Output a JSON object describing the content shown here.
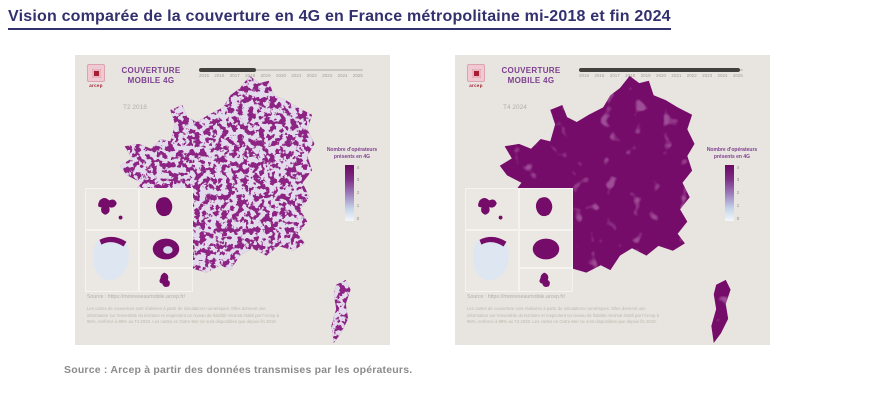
{
  "page": {
    "title": "Vision comparée de la couverture en 4G en France métropolitaine mi-2018 et fin 2024",
    "source_note": "Source : Arcep à partir des données transmises par les opérateurs."
  },
  "panels": [
    {
      "period": "mi-2018",
      "logo_text": "arcep",
      "app_title_line1": "COUVERTURE",
      "app_title_line2": "MOBILE 4G",
      "period_label": "T2 2018",
      "timeline": {
        "years": [
          "2015",
          "2016",
          "2017",
          "2018",
          "2019",
          "2020",
          "2021",
          "2022",
          "2023",
          "2024",
          "2025"
        ],
        "selected_year": "2018"
      },
      "legend": {
        "title_line1": "Nombre d'opérateurs",
        "title_line2": "présents en 4G",
        "ticks": [
          "4",
          "3",
          "2",
          "1",
          "0"
        ]
      },
      "source_url": "Source : https://monreseaumobile.arcep.fr/",
      "disclaimer": "Les cartes de couverture sont réalisées à partir de simulations numériques. Elles donnent une information sur l'ensemble du territoire et respectent un niveau de fiabilité minimal établi par l'Arcep à 95%, renforcé à 98% au T4 2020. Les cartes en Outre-Mer ne sont disponibles que depuis fin 2018."
    },
    {
      "period": "fin 2024",
      "logo_text": "arcep",
      "app_title_line1": "COUVERTURE",
      "app_title_line2": "MOBILE 4G",
      "period_label": "T4 2024",
      "timeline": {
        "years": [
          "2015",
          "2016",
          "2017",
          "2018",
          "2019",
          "2020",
          "2021",
          "2022",
          "2023",
          "2024",
          "2025"
        ],
        "selected_year": "2024"
      },
      "legend": {
        "title_line1": "Nombre d'opérateurs",
        "title_line2": "présents en 4G",
        "ticks": [
          "4",
          "3",
          "2",
          "1",
          "0"
        ]
      },
      "source_url": "Source : https://monreseaumobile.arcep.fr/",
      "disclaimer": "Les cartes de couverture sont réalisées à partir de simulations numériques. Elles donnent une information sur l'ensemble du territoire et respectent un niveau de fiabilité minimal établi par l'Arcep à 95%, renforcé à 98% au T4 2020. Les cartes en Outre-Mer ne sont disponibles que depuis fin 2018."
    }
  ],
  "colors": {
    "title-navy": "#32306d",
    "source-gray": "#8b8b8b",
    "panel-bg": "#e8e5e0",
    "map-purple": "#760c6a",
    "map-purple-2018": "#8d2383",
    "brand-purple": "#7d3f8f",
    "legend-top": "#6b0862",
    "arcep-pink": "#f0c9d2",
    "arcep-red": "#a61e32"
  }
}
